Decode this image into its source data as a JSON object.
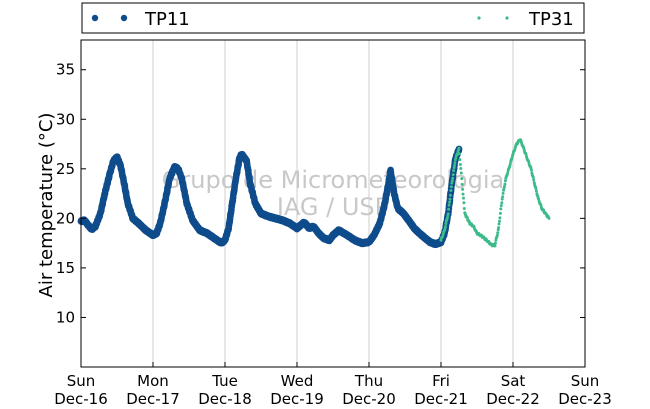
{
  "chart_data": {
    "type": "line",
    "ylabel": "Air temperature (°C)",
    "ylim": [
      5,
      38
    ],
    "yticks": [
      10,
      15,
      20,
      25,
      30,
      35
    ],
    "xlim": [
      0,
      7
    ],
    "xticks": [
      {
        "x": 0,
        "day": "Sun",
        "date": "Dec-16"
      },
      {
        "x": 1,
        "day": "Mon",
        "date": "Dec-17"
      },
      {
        "x": 2,
        "day": "Tue",
        "date": "Dec-18"
      },
      {
        "x": 3,
        "day": "Wed",
        "date": "Dec-19"
      },
      {
        "x": 4,
        "day": "Thu",
        "date": "Dec-20"
      },
      {
        "x": 5,
        "day": "Fri",
        "date": "Dec-21"
      },
      {
        "x": 6,
        "day": "Sat",
        "date": "Dec-22"
      },
      {
        "x": 7,
        "day": "Sun",
        "date": "Dec-23"
      }
    ],
    "grid": "vertical",
    "legend_position": "top",
    "watermark": [
      "Grupo de Micrometeorologia",
      "IAG / USP"
    ],
    "series": [
      {
        "name": "TP11",
        "color": "#0f4c8c",
        "marker": "large-dot",
        "points": [
          [
            0.0,
            19.7
          ],
          [
            0.05,
            19.8
          ],
          [
            0.1,
            19.3
          ],
          [
            0.15,
            18.9
          ],
          [
            0.2,
            19.2
          ],
          [
            0.27,
            20.5
          ],
          [
            0.33,
            22.5
          ],
          [
            0.4,
            24.5
          ],
          [
            0.45,
            25.8
          ],
          [
            0.5,
            26.2
          ],
          [
            0.55,
            25.3
          ],
          [
            0.6,
            23.5
          ],
          [
            0.65,
            21.5
          ],
          [
            0.72,
            20.0
          ],
          [
            0.8,
            19.5
          ],
          [
            0.9,
            18.8
          ],
          [
            1.0,
            18.3
          ],
          [
            1.05,
            18.5
          ],
          [
            1.1,
            19.5
          ],
          [
            1.17,
            21.8
          ],
          [
            1.23,
            24.0
          ],
          [
            1.3,
            25.2
          ],
          [
            1.35,
            25.0
          ],
          [
            1.4,
            24.0
          ],
          [
            1.47,
            21.5
          ],
          [
            1.55,
            19.8
          ],
          [
            1.65,
            18.8
          ],
          [
            1.75,
            18.5
          ],
          [
            1.85,
            18.0
          ],
          [
            1.95,
            17.5
          ],
          [
            2.0,
            17.8
          ],
          [
            2.05,
            19.0
          ],
          [
            2.1,
            21.5
          ],
          [
            2.15,
            24.0
          ],
          [
            2.2,
            26.0
          ],
          [
            2.23,
            26.5
          ],
          [
            2.3,
            25.8
          ],
          [
            2.35,
            23.5
          ],
          [
            2.42,
            21.5
          ],
          [
            2.5,
            20.5
          ],
          [
            2.6,
            20.2
          ],
          [
            2.7,
            20.0
          ],
          [
            2.8,
            19.8
          ],
          [
            2.9,
            19.5
          ],
          [
            3.0,
            19.0
          ],
          [
            3.05,
            19.3
          ],
          [
            3.1,
            19.6
          ],
          [
            3.17,
            19.0
          ],
          [
            3.23,
            19.2
          ],
          [
            3.3,
            18.5
          ],
          [
            3.37,
            18.0
          ],
          [
            3.45,
            17.8
          ],
          [
            3.5,
            18.3
          ],
          [
            3.58,
            18.8
          ],
          [
            3.65,
            18.5
          ],
          [
            3.72,
            18.2
          ],
          [
            3.8,
            17.8
          ],
          [
            3.9,
            17.5
          ],
          [
            4.0,
            17.6
          ],
          [
            4.07,
            18.3
          ],
          [
            4.15,
            19.5
          ],
          [
            4.22,
            21.5
          ],
          [
            4.27,
            23.5
          ],
          [
            4.3,
            24.8
          ],
          [
            4.35,
            22.5
          ],
          [
            4.4,
            21.0
          ],
          [
            4.48,
            20.5
          ],
          [
            4.55,
            19.8
          ],
          [
            4.63,
            19.0
          ],
          [
            4.7,
            18.5
          ],
          [
            4.78,
            18.0
          ],
          [
            4.85,
            17.6
          ],
          [
            4.92,
            17.4
          ],
          [
            5.0,
            17.6
          ],
          [
            5.05,
            18.5
          ],
          [
            5.1,
            20.5
          ],
          [
            5.15,
            23.5
          ],
          [
            5.2,
            26.0
          ],
          [
            5.25,
            27.0
          ]
        ]
      },
      {
        "name": "TP31",
        "color": "#3dbb8a",
        "marker": "small-dot",
        "points": [
          [
            5.0,
            17.8
          ],
          [
            5.05,
            18.8
          ],
          [
            5.1,
            20.5
          ],
          [
            5.15,
            23.5
          ],
          [
            5.2,
            26.0
          ],
          [
            5.25,
            27.0
          ],
          [
            5.3,
            23.0
          ],
          [
            5.33,
            20.5
          ],
          [
            5.4,
            19.5
          ],
          [
            5.45,
            19.2
          ],
          [
            5.5,
            18.5
          ],
          [
            5.55,
            18.3
          ],
          [
            5.6,
            18.0
          ],
          [
            5.65,
            17.7
          ],
          [
            5.7,
            17.3
          ],
          [
            5.75,
            17.3
          ],
          [
            5.8,
            19.0
          ],
          [
            5.85,
            22.0
          ],
          [
            5.9,
            24.0
          ],
          [
            5.95,
            25.2
          ],
          [
            6.0,
            26.5
          ],
          [
            6.05,
            27.5
          ],
          [
            6.1,
            28.0
          ],
          [
            6.15,
            27.0
          ],
          [
            6.2,
            26.0
          ],
          [
            6.25,
            25.0
          ],
          [
            6.3,
            23.5
          ],
          [
            6.35,
            22.0
          ],
          [
            6.4,
            21.0
          ],
          [
            6.45,
            20.5
          ],
          [
            6.5,
            20.0
          ]
        ]
      }
    ]
  }
}
